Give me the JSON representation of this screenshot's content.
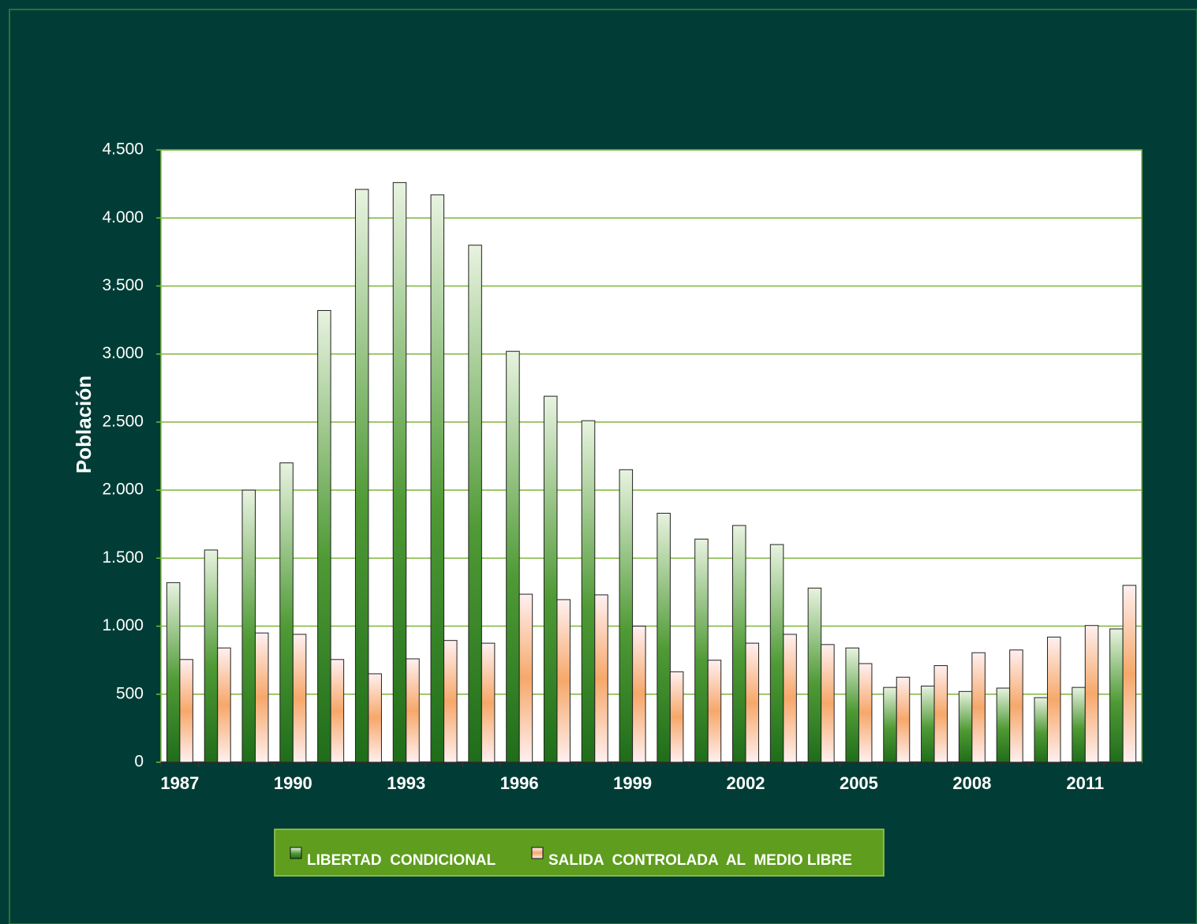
{
  "chart_data": {
    "type": "bar",
    "y_label": "Población",
    "categories": [
      "1987",
      null,
      null,
      "1990",
      null,
      null,
      "1993",
      null,
      null,
      "1996",
      null,
      null,
      "1999",
      null,
      null,
      "2002",
      null,
      null,
      "2005",
      null,
      null,
      "2008",
      null,
      null,
      "2011",
      null
    ],
    "series": [
      {
        "name": "LIBERTAD  CONDICIONAL",
        "color": "#4f9a35",
        "values": [
          1320,
          1560,
          2000,
          2200,
          3320,
          4210,
          4260,
          4170,
          3800,
          3020,
          2690,
          2510,
          2150,
          1830,
          1640,
          1740,
          1600,
          1280,
          840,
          550,
          560,
          520,
          545,
          475,
          550,
          980
        ]
      },
      {
        "name": "SALIDA  CONTROLADA  AL  MEDIO LIBRE",
        "color": "#f6a86a",
        "values": [
          755,
          840,
          950,
          940,
          755,
          650,
          760,
          895,
          875,
          1235,
          1195,
          1230,
          1000,
          665,
          750,
          875,
          940,
          865,
          725,
          625,
          710,
          805,
          825,
          920,
          1005,
          1300
        ]
      }
    ],
    "ylim": [
      0,
      4500
    ],
    "yticks": [
      0,
      500,
      {
        "value": 1000,
        "label": "1.000"
      },
      {
        "value": 1500,
        "label": "1.500"
      },
      {
        "value": 2000,
        "label": "2.000"
      },
      {
        "value": 2500,
        "label": "2.500"
      },
      {
        "value": 3000,
        "label": "3.000"
      },
      {
        "value": 3500,
        "label": "3.500"
      },
      {
        "value": 4000,
        "label": "4.000"
      },
      {
        "value": 4500,
        "label": "4.500"
      }
    ],
    "grid": true
  }
}
